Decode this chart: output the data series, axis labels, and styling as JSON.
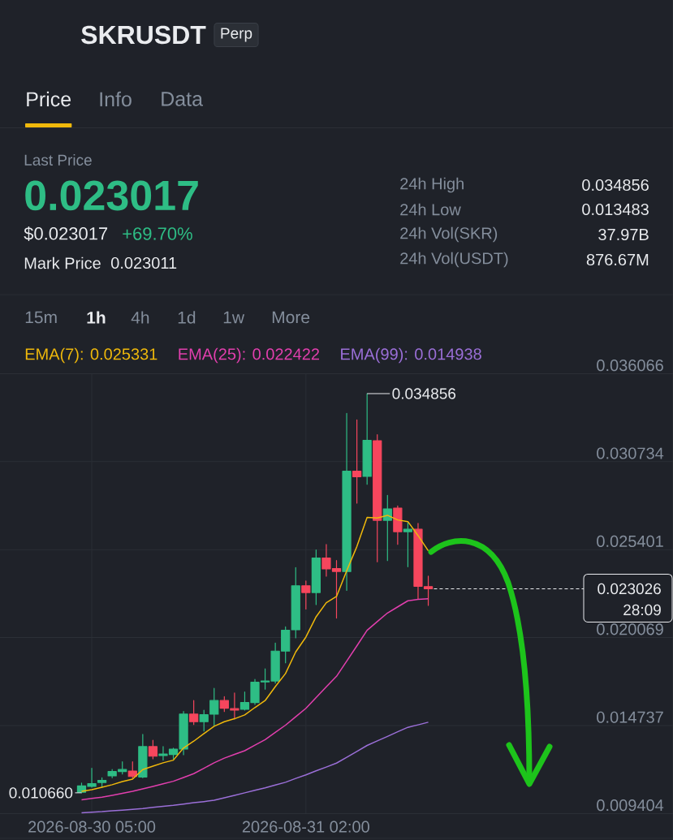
{
  "chart_data": {
    "type": "candlestick",
    "title": "SKRUSDT",
    "annotations": [
      "Perp",
      "Price",
      "Info",
      "Data",
      "Last Price",
      "0.023017",
      "$0.023017",
      "+69.70%",
      "Mark Price",
      "0.023011",
      "24h High",
      "0.034856",
      "24h Low",
      "0.013483",
      "24h Vol(SKR)",
      "37.97B",
      "24h Vol(USDT)",
      "876.67M",
      "15m",
      "1h",
      "4h",
      "1d",
      "1w",
      "More",
      {
        "text": "0.034856",
        "x": "2026-08-31T08:00",
        "y": 0.034856
      },
      {
        "text": "0.010660",
        "x": "2026-08-30T04:00",
        "y": 0.01066
      },
      "28:09"
    ],
    "x": [
      "2026-08-30T04:00",
      "2026-08-30T05:00",
      "2026-08-30T06:00",
      "2026-08-30T07:00",
      "2026-08-30T08:00",
      "2026-08-30T09:00",
      "2026-08-30T10:00",
      "2026-08-30T11:00",
      "2026-08-30T12:00",
      "2026-08-30T13:00",
      "2026-08-30T14:00",
      "2026-08-30T15:00",
      "2026-08-30T16:00",
      "2026-08-30T17:00",
      "2026-08-30T18:00",
      "2026-08-30T19:00",
      "2026-08-30T20:00",
      "2026-08-30T21:00",
      "2026-08-30T22:00",
      "2026-08-30T23:00",
      "2026-08-31T00:00",
      "2026-08-31T01:00",
      "2026-08-31T02:00",
      "2026-08-31T03:00",
      "2026-08-31T04:00",
      "2026-08-31T05:00",
      "2026-08-31T06:00",
      "2026-08-31T07:00",
      "2026-08-31T08:00",
      "2026-08-31T09:00",
      "2026-08-31T10:00",
      "2026-08-31T11:00",
      "2026-08-31T12:00",
      "2026-08-31T13:00",
      "2026-08-31T14:00"
    ],
    "ohlc": [
      [
        0.0107,
        0.01125,
        0.01066,
        0.01108
      ],
      [
        0.01105,
        0.01215,
        0.011,
        0.01121
      ],
      [
        0.01129,
        0.01157,
        0.011,
        0.01141
      ],
      [
        0.01169,
        0.01207,
        0.01157,
        0.01195
      ],
      [
        0.01195,
        0.01254,
        0.0118,
        0.01207
      ],
      [
        0.01198,
        0.01254,
        0.01157,
        0.01165
      ],
      [
        0.01162,
        0.0142,
        0.01157,
        0.01346
      ],
      [
        0.01346,
        0.01384,
        0.01272,
        0.01288
      ],
      [
        0.01292,
        0.01346,
        0.01264,
        0.01301
      ],
      [
        0.01298,
        0.01336,
        0.01272,
        0.01331
      ],
      [
        0.01331,
        0.01559,
        0.01297,
        0.01543
      ],
      [
        0.01543,
        0.01625,
        0.0148,
        0.01497
      ],
      [
        0.01497,
        0.01567,
        0.01441,
        0.01539
      ],
      [
        0.01543,
        0.01699,
        0.01474,
        0.01625
      ],
      [
        0.01625,
        0.01649,
        0.01559,
        0.01579
      ],
      [
        0.01576,
        0.01671,
        0.01513,
        0.01567
      ],
      [
        0.01572,
        0.01677,
        0.01567,
        0.01613
      ],
      [
        0.01613,
        0.01754,
        0.01602,
        0.01736
      ],
      [
        0.01738,
        0.01817,
        0.01694,
        0.01744
      ],
      [
        0.01744,
        0.01974,
        0.01731,
        0.01925
      ],
      [
        0.01925,
        0.02072,
        0.01854,
        0.02051
      ],
      [
        0.02054,
        0.02431,
        0.02005,
        0.02321
      ],
      [
        0.02321,
        0.0235,
        0.0218,
        0.0228
      ],
      [
        0.0228,
        0.02538,
        0.02207,
        0.02489
      ],
      [
        0.02489,
        0.02571,
        0.02379,
        0.02423
      ],
      [
        0.02425,
        0.02474,
        0.02125,
        0.02408
      ],
      [
        0.02407,
        0.03366,
        0.02293,
        0.03015
      ],
      [
        0.03015,
        0.03327,
        0.02822,
        0.02982
      ],
      [
        0.02984,
        0.034856,
        0.02936,
        0.03202
      ],
      [
        0.032,
        0.03237,
        0.02466,
        0.02718
      ],
      [
        0.02718,
        0.02869,
        0.02474,
        0.02787
      ],
      [
        0.02792,
        0.02805,
        0.02572,
        0.02649
      ],
      [
        0.02649,
        0.02703,
        0.02436,
        0.02663
      ],
      [
        0.02663,
        0.02699,
        0.0224,
        0.02318
      ],
      [
        0.02316,
        0.02379,
        0.02202,
        0.023026
      ]
    ],
    "colors": [
      "#2ebd85",
      "#2ebd85",
      "#2ebd85",
      "#2ebd85",
      "#2ebd85",
      "#f6465d",
      "#2ebd85",
      "#f6465d",
      "#2ebd85",
      "#2ebd85",
      "#2ebd85",
      "#f6465d",
      "#2ebd85",
      "#2ebd85",
      "#f6465d",
      "#f6465d",
      "#2ebd85",
      "#2ebd85",
      "#2ebd85",
      "#2ebd85",
      "#2ebd85",
      "#2ebd85",
      "#f6465d",
      "#2ebd85",
      "#f6465d",
      "#f6465d",
      "#2ebd85",
      "#f6465d",
      "#2ebd85",
      "#f6465d",
      "#2ebd85",
      "#f6465d",
      "#2ebd85",
      "#f6465d",
      "#f6465d"
    ],
    "series": [
      {
        "name": "EMA(7): 0.025331",
        "type": "line",
        "color": "#f0b90b",
        "values": [
          0.01075,
          0.01085,
          0.011,
          0.01115,
          0.01134,
          0.01149,
          0.01207,
          0.01228,
          0.01248,
          0.01264,
          0.01338,
          0.01379,
          0.01425,
          0.01469,
          0.01497,
          0.01515,
          0.01538,
          0.01583,
          0.01625,
          0.0171,
          0.01789,
          0.0192,
          0.0201,
          0.02133,
          0.02218,
          0.02256,
          0.02412,
          0.02559,
          0.02735,
          0.02732,
          0.02748,
          0.0272,
          0.0271,
          0.02625,
          0.025331
        ]
      },
      {
        "name": "EMA(25): 0.022422",
        "type": "line",
        "color": "#e23fae",
        "values": [
          0.01023,
          0.01032,
          0.0104,
          0.01051,
          0.01063,
          0.01075,
          0.0109,
          0.01105,
          0.01121,
          0.01136,
          0.01159,
          0.01182,
          0.01215,
          0.01248,
          0.01276,
          0.01299,
          0.01321,
          0.01355,
          0.01388,
          0.01432,
          0.01476,
          0.01527,
          0.01578,
          0.01643,
          0.01708,
          0.01772,
          0.01864,
          0.01957,
          0.02051,
          0.02104,
          0.02156,
          0.02193,
          0.0223,
          0.02238,
          0.022422
        ]
      },
      {
        "name": "EMA(99): 0.014938",
        "type": "line",
        "color": "#9b6fd8",
        "values": [
          0.00945,
          0.00949,
          0.00952,
          0.00957,
          0.00961,
          0.00966,
          0.00971,
          0.00978,
          0.00984,
          0.0099,
          0.00998,
          0.01006,
          0.01013,
          0.01021,
          0.01036,
          0.01051,
          0.01066,
          0.01081,
          0.01096,
          0.01113,
          0.0113,
          0.01153,
          0.01175,
          0.01199,
          0.01222,
          0.01246,
          0.01281,
          0.01317,
          0.01353,
          0.01381,
          0.01408,
          0.01436,
          0.01463,
          0.01478,
          0.014938
        ]
      }
    ],
    "xlim": [
      "2026-08-29T20:00",
      "2026-09-01T14:00"
    ],
    "xticks": [
      {
        "value": "2026-08-30T05:00",
        "label": "2026-08-30 05:00"
      },
      {
        "value": "2026-08-31T02:00",
        "label": "2026-08-31 02:00"
      }
    ],
    "ylim": [
      0.009404,
      0.036066
    ],
    "yticks": [
      0.009404,
      0.014737,
      0.020069,
      0.025401,
      0.030734,
      0.036066
    ],
    "ref_lines": [
      {
        "axis": "y",
        "value": 0.023026,
        "label": "0.023026",
        "color": "#eaecef",
        "line_style": "dashed"
      }
    ],
    "grid": true,
    "legend": "top left"
  }
}
